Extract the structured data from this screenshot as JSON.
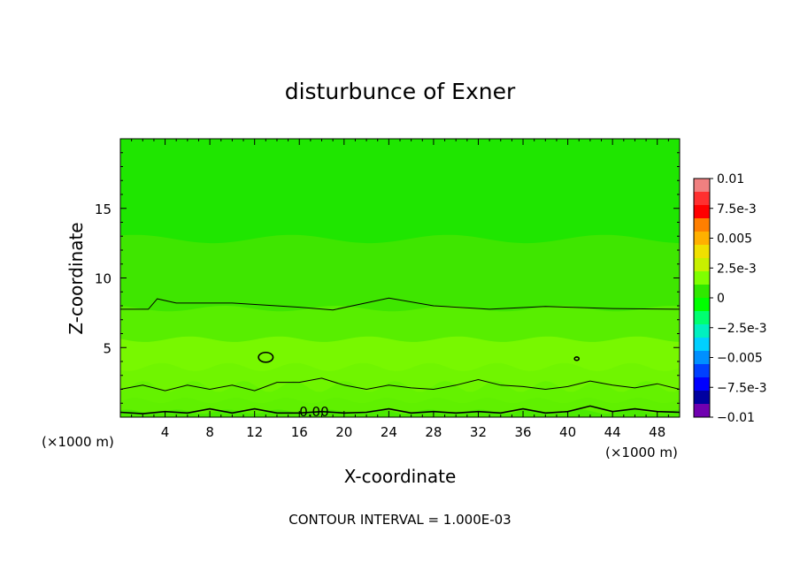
{
  "chart_data": {
    "type": "heatmap",
    "title": "disturbunce of Exner",
    "xlabel": "X-coordinate",
    "ylabel": "Z-coordinate",
    "x_unit_left": "(×1000 m)",
    "x_unit_right": "(×1000 m)",
    "footer": "CONTOUR INTERVAL = 1.000E-03",
    "xlim": [
      0,
      50
    ],
    "ylim": [
      0,
      20
    ],
    "x_ticks": [
      "4",
      "8",
      "12",
      "16",
      "20",
      "24",
      "28",
      "32",
      "36",
      "40",
      "44",
      "48"
    ],
    "x_tick_values": [
      4,
      8,
      12,
      16,
      20,
      24,
      28,
      32,
      36,
      40,
      44,
      48
    ],
    "y_ticks": [
      "5",
      "10",
      "15"
    ],
    "y_tick_values": [
      5,
      10,
      15
    ],
    "contour_label": "0.00",
    "colorbar": {
      "labels": [
        "0.01",
        "7.5e-3",
        "0.005",
        "2.5e-3",
        "0",
        "−2.5e-3",
        "−0.005",
        "−7.5e-3",
        "−0.01"
      ],
      "colors": [
        "#f08080",
        "#ff3030",
        "#ff0000",
        "#ff7f00",
        "#ffb000",
        "#f0e000",
        "#c8f000",
        "#7fff00",
        "#30e800",
        "#00ff00",
        "#00ff70",
        "#00f0c0",
        "#00d0ff",
        "#0090ff",
        "#0040ff",
        "#0000ff",
        "#0000a0",
        "#7000b0"
      ]
    },
    "bands": [
      {
        "z_bottom": 0.0,
        "z_top": 0.4,
        "color": "#4bea00",
        "wave_amp": 0.15,
        "wave_len": 4.5
      },
      {
        "z_bottom": 0.4,
        "z_top": 1.2,
        "color": "#60f000",
        "wave_amp": 0.2,
        "wave_len": 4.5
      },
      {
        "z_bottom": 1.2,
        "z_top": 2.2,
        "color": "#64f200",
        "wave_amp": 0.4,
        "wave_len": 4.5
      },
      {
        "z_bottom": 2.2,
        "z_top": 3.6,
        "color": "#70f500",
        "wave_amp": 0.3,
        "wave_len": 6
      },
      {
        "z_bottom": 3.6,
        "z_top": 5.6,
        "color": "#78f800",
        "wave_amp": 0.2,
        "wave_len": 8
      },
      {
        "z_bottom": 5.6,
        "z_top": 7.8,
        "color": "#58ee00",
        "wave_amp": 0.2,
        "wave_len": 10
      },
      {
        "z_bottom": 7.8,
        "z_top": 12.8,
        "color": "#3fe600",
        "wave_amp": 0.3,
        "wave_len": 14
      },
      {
        "z_bottom": 12.8,
        "z_top": 20.0,
        "color": "#1fe600",
        "wave_amp": 0.2,
        "wave_len": 20
      }
    ],
    "contours": [
      {
        "points": [
          [
            0,
            7.75
          ],
          [
            2.5,
            7.75
          ],
          [
            3.3,
            8.5
          ],
          [
            5,
            8.2
          ],
          [
            10,
            8.2
          ],
          [
            16,
            7.9
          ],
          [
            19,
            7.7
          ],
          [
            24,
            8.55
          ],
          [
            28,
            8.0
          ],
          [
            33,
            7.75
          ],
          [
            38,
            7.95
          ],
          [
            44,
            7.8
          ],
          [
            50,
            7.75
          ]
        ]
      },
      {
        "points": [
          [
            0,
            2.0
          ],
          [
            2,
            2.3
          ],
          [
            4,
            1.9
          ],
          [
            6,
            2.3
          ],
          [
            8,
            2.0
          ],
          [
            10,
            2.3
          ],
          [
            12,
            1.9
          ],
          [
            14,
            2.5
          ],
          [
            16,
            2.5
          ],
          [
            18,
            2.8
          ],
          [
            20,
            2.3
          ],
          [
            22,
            2.0
          ],
          [
            24,
            2.3
          ],
          [
            26,
            2.1
          ],
          [
            28,
            2.0
          ],
          [
            30,
            2.3
          ],
          [
            32,
            2.7
          ],
          [
            34,
            2.3
          ],
          [
            36,
            2.2
          ],
          [
            38,
            2.0
          ],
          [
            40,
            2.2
          ],
          [
            42,
            2.6
          ],
          [
            44,
            2.3
          ],
          [
            46,
            2.1
          ],
          [
            48,
            2.4
          ],
          [
            50,
            2.0
          ]
        ]
      },
      {
        "points": [
          [
            0,
            0.35
          ],
          [
            2,
            0.25
          ],
          [
            4,
            0.4
          ],
          [
            6,
            0.3
          ],
          [
            8,
            0.6
          ],
          [
            10,
            0.3
          ],
          [
            12,
            0.6
          ],
          [
            14,
            0.3
          ],
          [
            16,
            0.3
          ],
          [
            18,
            0.4
          ],
          [
            20,
            0.3
          ],
          [
            22,
            0.35
          ],
          [
            24,
            0.6
          ],
          [
            26,
            0.3
          ],
          [
            28,
            0.4
          ],
          [
            30,
            0.3
          ],
          [
            32,
            0.4
          ],
          [
            34,
            0.3
          ],
          [
            36,
            0.6
          ],
          [
            38,
            0.3
          ],
          [
            40,
            0.4
          ],
          [
            42,
            0.8
          ],
          [
            44,
            0.4
          ],
          [
            46,
            0.6
          ],
          [
            48,
            0.4
          ],
          [
            50,
            0.35
          ]
        ]
      }
    ],
    "ellipses": [
      {
        "cx": 13.0,
        "cz": 4.3,
        "rx": 0.65,
        "rz": 0.35
      },
      {
        "cx": 40.8,
        "cz": 4.2,
        "rx": 0.2,
        "rz": 0.12
      }
    ]
  }
}
